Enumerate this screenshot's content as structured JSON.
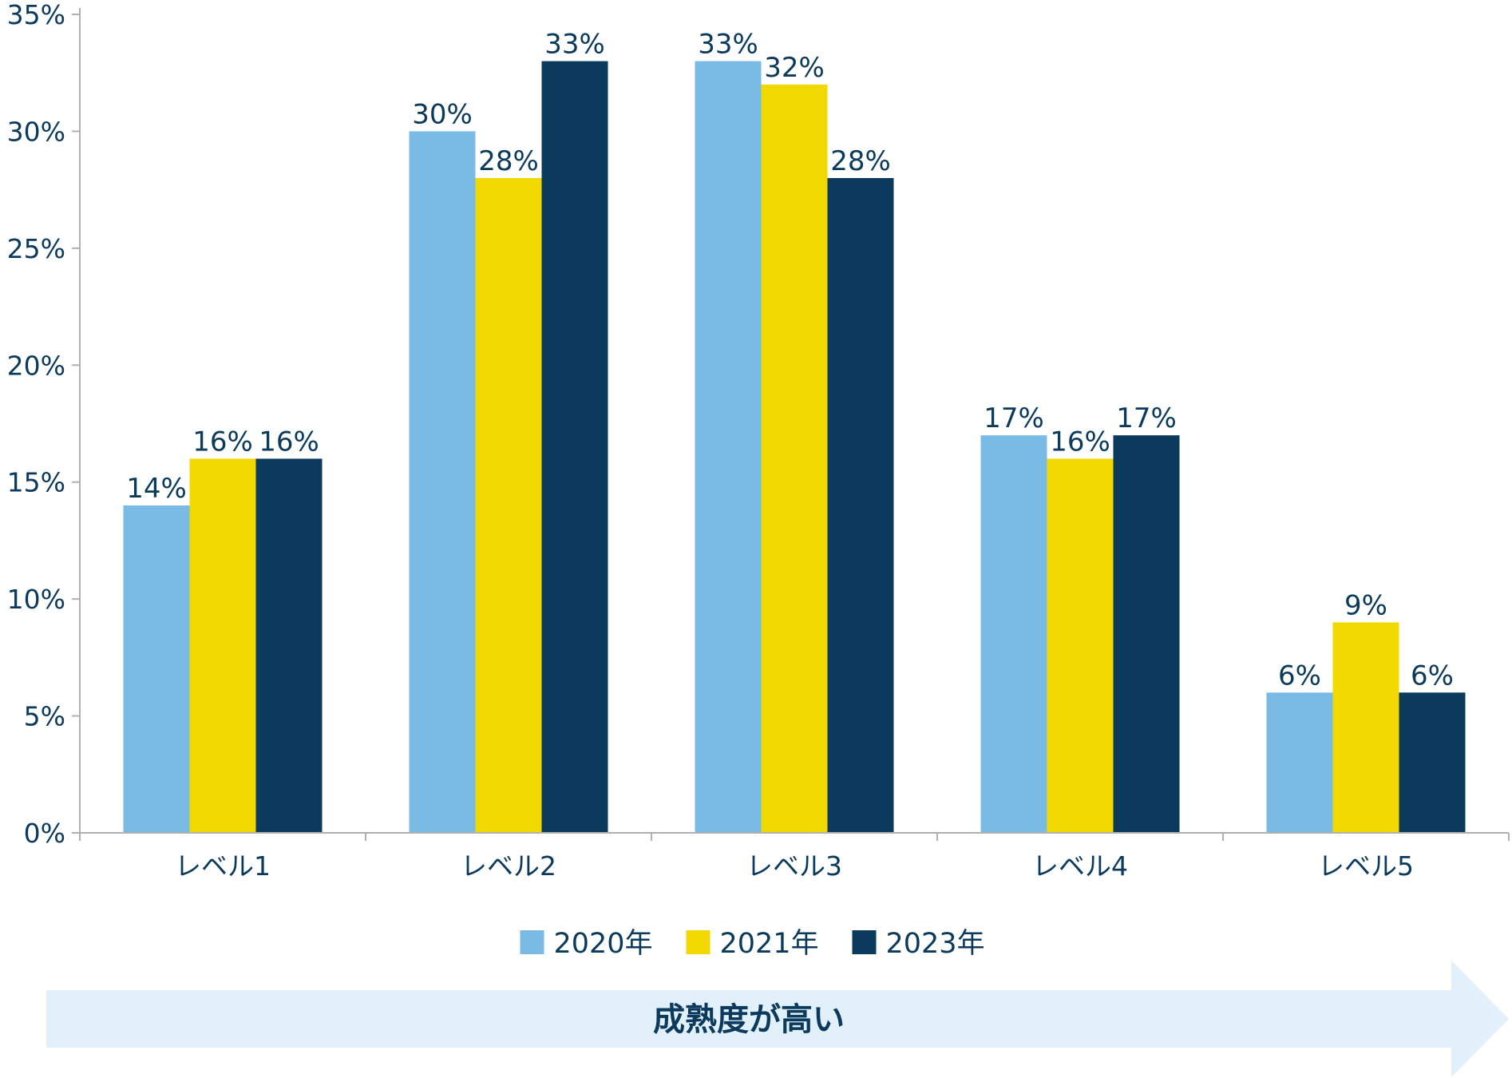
{
  "chart_data": {
    "type": "bar",
    "categories": [
      "レベル1",
      "レベル2",
      "レベル3",
      "レベル4",
      "レベル5"
    ],
    "series": [
      {
        "name": "2020年",
        "color": "#7abbe6",
        "values": [
          14,
          30,
          33,
          17,
          6
        ],
        "labels": [
          "14%",
          "30%",
          "33%",
          "17%",
          "6%"
        ]
      },
      {
        "name": "2021年",
        "color": "#f0d800",
        "values": [
          16,
          28,
          32,
          16,
          9
        ],
        "labels": [
          "16%",
          "28%",
          "32%",
          "16%",
          "9%"
        ]
      },
      {
        "name": "2023年",
        "color": "#0b3a5c",
        "values": [
          16,
          33,
          28,
          17,
          6
        ],
        "labels": [
          "16%",
          "33%",
          "28%",
          "17%",
          "6%"
        ]
      }
    ],
    "ylim": [
      0,
      35
    ],
    "yticks": [
      0,
      5,
      10,
      15,
      20,
      25,
      30,
      35
    ],
    "ytick_labels": [
      "0%",
      "5%",
      "10%",
      "15%",
      "20%",
      "25%",
      "30%",
      "35%"
    ],
    "title": "",
    "xlabel": "",
    "ylabel": "",
    "grid": false,
    "legend_position": "bottom-center",
    "axis_color": "#b0b0b0",
    "text_color": "#0b3a5c"
  },
  "banner": {
    "label": "成熟度が高い",
    "color": "#e2f0fa"
  }
}
